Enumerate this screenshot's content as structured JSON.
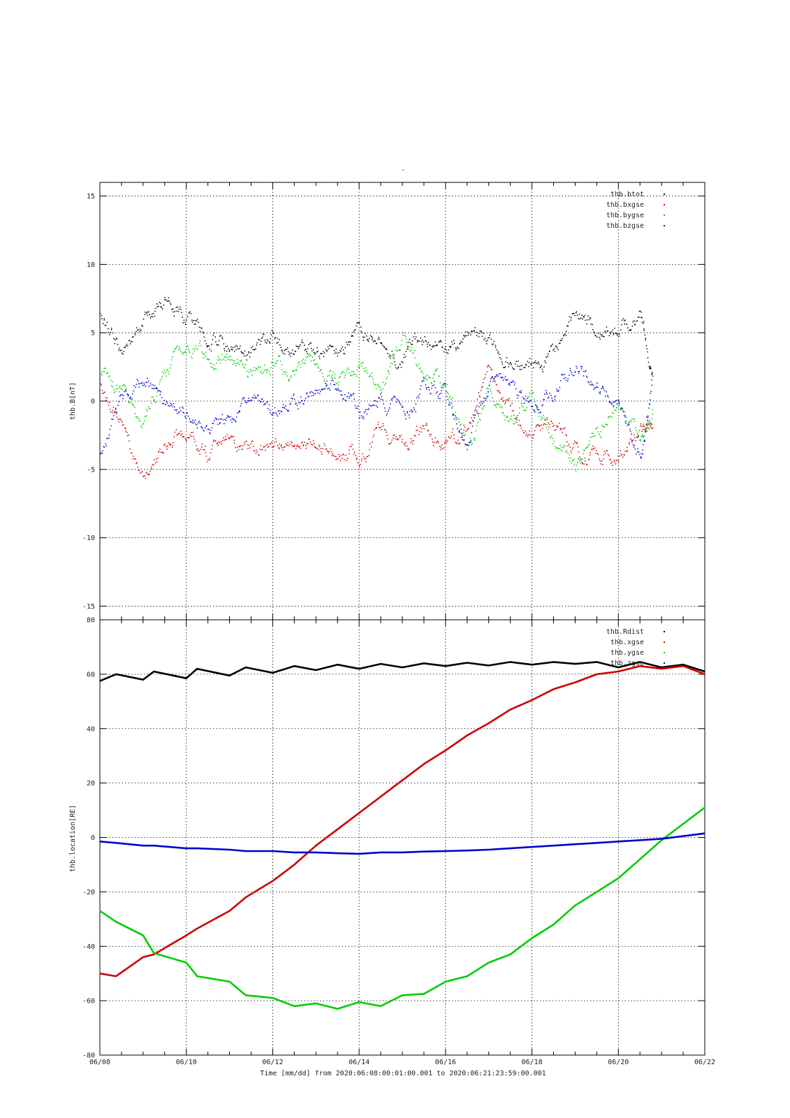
{
  "figure": {
    "title": "-",
    "xlabel": "Time [mm/dd]  from 2020:06:08:00:01:00.001  to  2020:06:21:23:59:00.001",
    "x_tick_labels": [
      "06/08",
      "06/10",
      "06/12",
      "06/14",
      "06/16",
      "06/18",
      "06/20",
      "06/22"
    ]
  },
  "colors": {
    "btot": "#000000",
    "xgse": "#cc0000",
    "ygse": "#00cc00",
    "zgse": "#0000cc"
  },
  "chart_data": [
    {
      "type": "scatter",
      "panel": "top",
      "ylabel": "thb.B[nT]",
      "xlim": [
        "2020-06-08",
        "2020-06-22"
      ],
      "ylim": [
        -16,
        16
      ],
      "y_ticks": [
        -15,
        -10,
        -5,
        0,
        5,
        10,
        15
      ],
      "grid": true,
      "legend_position": "top-right",
      "x": [
        "2020-06-08",
        "2020-06-08T12",
        "2020-06-09",
        "2020-06-09T12",
        "2020-06-10",
        "2020-06-10T12",
        "2020-06-11",
        "2020-06-11T12",
        "2020-06-12",
        "2020-06-12T12",
        "2020-06-13",
        "2020-06-13T12",
        "2020-06-14",
        "2020-06-14T12",
        "2020-06-15",
        "2020-06-15T12",
        "2020-06-16",
        "2020-06-16T12",
        "2020-06-17",
        "2020-06-17T12",
        "2020-06-18",
        "2020-06-18T12",
        "2020-06-19",
        "2020-06-19T12",
        "2020-06-20",
        "2020-06-20T12",
        "2020-06-20T19"
      ],
      "series": [
        {
          "name": "thb.btot",
          "color_key": "btot",
          "values": [
            6.5,
            3.5,
            6.0,
            7.5,
            6.0,
            5.0,
            4.0,
            3.8,
            4.5,
            4.0,
            3.5,
            3.2,
            5.0,
            4.0,
            3.5,
            4.5,
            3.2,
            5.0,
            4.2,
            3.0,
            2.5,
            3.5,
            6.0,
            5.5,
            5.0,
            6.5,
            2.0
          ]
        },
        {
          "name": "thb.bxgse",
          "color_key": "xgse",
          "values": [
            1.0,
            -2.0,
            -6.0,
            -3.0,
            -2.0,
            -4.0,
            -2.5,
            -3.0,
            -3.5,
            -2.5,
            -3.0,
            -3.5,
            -4.5,
            -2.0,
            -3.0,
            -2.0,
            -3.0,
            -2.0,
            2.0,
            -1.0,
            -2.5,
            -1.5,
            -3.5,
            -4.0,
            -4.5,
            -2.0,
            -1.5
          ]
        },
        {
          "name": "thb.bygse",
          "color_key": "ygse",
          "values": [
            2.0,
            1.0,
            -1.5,
            2.5,
            4.0,
            3.0,
            3.5,
            2.0,
            3.0,
            2.0,
            2.5,
            1.5,
            3.0,
            1.0,
            4.5,
            2.0,
            1.0,
            -4.0,
            1.0,
            -2.0,
            0.5,
            -3.0,
            -5.0,
            -2.0,
            0.0,
            -3.0,
            -1.0
          ]
        },
        {
          "name": "thb.bzgse",
          "color_key": "zgse",
          "values": [
            -4.0,
            0.0,
            2.0,
            0.0,
            -1.0,
            -2.0,
            -1.0,
            0.5,
            -1.0,
            0.0,
            1.0,
            1.5,
            -1.0,
            0.0,
            -1.0,
            1.0,
            0.5,
            -3.0,
            1.5,
            1.0,
            -0.5,
            1.0,
            3.0,
            1.0,
            0.0,
            -4.0,
            1.0
          ]
        }
      ]
    },
    {
      "type": "line",
      "panel": "bottom",
      "ylabel": "thb.location[RE]",
      "xlim": [
        "2020-06-08",
        "2020-06-22"
      ],
      "ylim": [
        -80,
        80
      ],
      "y_ticks": [
        -80,
        -60,
        -40,
        -20,
        0,
        20,
        40,
        60,
        80
      ],
      "grid": true,
      "legend_position": "top-right",
      "x": [
        "2020-06-08",
        "2020-06-08T09",
        "2020-06-09",
        "2020-06-09T06",
        "2020-06-10",
        "2020-06-10T06",
        "2020-06-11",
        "2020-06-11T09",
        "2020-06-12",
        "2020-06-12T12",
        "2020-06-13",
        "2020-06-13T12",
        "2020-06-14",
        "2020-06-14T12",
        "2020-06-15",
        "2020-06-15T12",
        "2020-06-16",
        "2020-06-16T12",
        "2020-06-17",
        "2020-06-17T12",
        "2020-06-18",
        "2020-06-18T12",
        "2020-06-19",
        "2020-06-19T12",
        "2020-06-20",
        "2020-06-20T12",
        "2020-06-21",
        "2020-06-21T12",
        "2020-06-22"
      ],
      "series": [
        {
          "name": "thb.Rdist",
          "color_key": "btot",
          "values": [
            57.5,
            60.0,
            58.0,
            61.0,
            58.5,
            62.0,
            59.5,
            62.5,
            60.5,
            63.0,
            61.5,
            63.5,
            62.0,
            63.8,
            62.5,
            64.0,
            63.0,
            64.2,
            63.2,
            64.5,
            63.5,
            64.5,
            63.8,
            64.5,
            62.5,
            64.5,
            62.5,
            63.5,
            61.0
          ]
        },
        {
          "name": "thb.xgse",
          "color_key": "xgse",
          "values": [
            -50.0,
            -51.0,
            -44.0,
            -43.0,
            -36.0,
            -33.5,
            -27.0,
            -22.0,
            -16.0,
            -10.0,
            -3.0,
            3.0,
            9.0,
            15.0,
            21.0,
            27.0,
            32.0,
            37.5,
            42.0,
            47.0,
            50.5,
            54.5,
            57.0,
            60.0,
            61.0,
            63.0,
            62.0,
            63.0,
            60.0
          ]
        },
        {
          "name": "thb.ygse",
          "color_key": "ygse",
          "values": [
            -27.0,
            -31.0,
            -36.0,
            -42.5,
            -46.0,
            -51.0,
            -53.0,
            -58.0,
            -59.0,
            -62.0,
            -61.0,
            -63.0,
            -60.5,
            -62.0,
            -58.0,
            -57.5,
            -53.0,
            -51.0,
            -46.0,
            -43.0,
            -37.0,
            -32.0,
            -25.0,
            -20.0,
            -15.0,
            -8.0,
            -1.0,
            5.0,
            11.0
          ]
        },
        {
          "name": "thb.zgse",
          "color_key": "zgse",
          "values": [
            -1.5,
            -2.0,
            -3.0,
            -3.0,
            -4.0,
            -4.0,
            -4.5,
            -5.0,
            -5.0,
            -5.5,
            -5.5,
            -5.8,
            -6.0,
            -5.5,
            -5.5,
            -5.2,
            -5.0,
            -4.8,
            -4.5,
            -4.0,
            -3.5,
            -3.0,
            -2.5,
            -2.0,
            -1.5,
            -1.0,
            -0.5,
            0.5,
            1.5
          ]
        }
      ]
    }
  ]
}
